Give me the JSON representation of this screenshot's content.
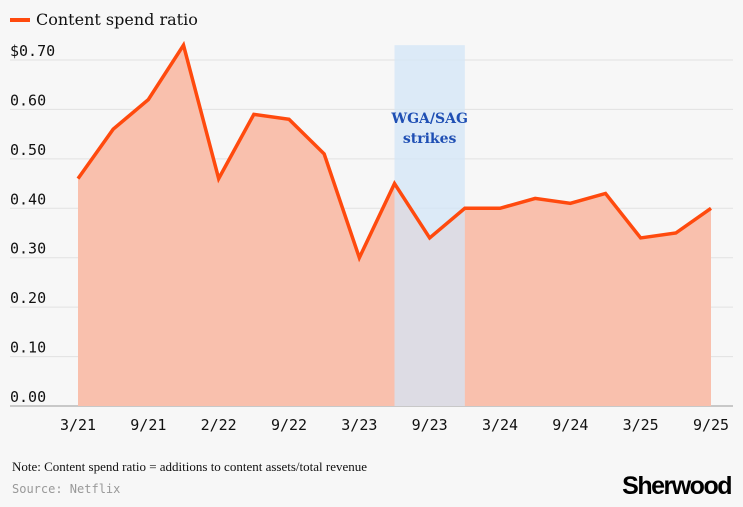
{
  "chart_data": {
    "type": "area",
    "title": "",
    "xlabel": "",
    "ylabel": "",
    "series": [
      {
        "name": "Content spend ratio",
        "color": "#ff4a0e",
        "fill": "#f9c0ad",
        "values": [
          0.46,
          0.56,
          0.62,
          0.73,
          0.46,
          0.59,
          0.58,
          0.51,
          0.3,
          0.45,
          0.34,
          0.4,
          0.4,
          0.42,
          0.41,
          0.43,
          0.34,
          0.35,
          0.4
        ]
      }
    ],
    "x_tick_labels": [
      {
        "index": 0,
        "label": "3/21"
      },
      {
        "index": 2,
        "label": "9/21"
      },
      {
        "index": 4,
        "label": "2/22"
      },
      {
        "index": 6,
        "label": "9/22"
      },
      {
        "index": 8,
        "label": "3/23"
      },
      {
        "index": 10,
        "label": "9/23"
      },
      {
        "index": 12,
        "label": "3/24"
      },
      {
        "index": 14,
        "label": "9/24"
      },
      {
        "index": 16,
        "label": "3/25"
      },
      {
        "index": 18,
        "label": "9/25"
      }
    ],
    "y_ticks": [
      {
        "value": 0.0,
        "label": "0.00"
      },
      {
        "value": 0.1,
        "label": "0.10"
      },
      {
        "value": 0.2,
        "label": "0.20"
      },
      {
        "value": 0.3,
        "label": "0.30"
      },
      {
        "value": 0.4,
        "label": "0.40"
      },
      {
        "value": 0.5,
        "label": "0.50"
      },
      {
        "value": 0.6,
        "label": "0.60"
      },
      {
        "value": 0.7,
        "label": "$0.70"
      }
    ],
    "ylim": [
      0,
      0.73
    ],
    "grid": true,
    "legend": "top-left",
    "annotation": {
      "label_lines": [
        "WGA/SAG",
        "strikes"
      ],
      "start_index": 9,
      "end_index": 11,
      "color": "#d3e5f7"
    }
  },
  "footer": {
    "note": "Note: Content spend ratio = additions to content assets/total revenue",
    "source": "Source: Netflix",
    "logo": "Sherwood"
  }
}
